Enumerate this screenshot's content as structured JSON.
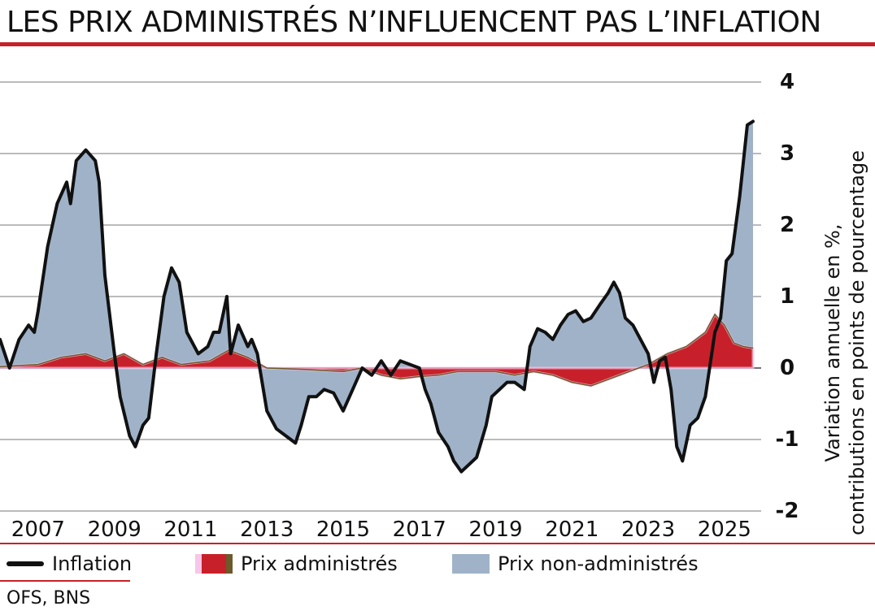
{
  "title": "LES PRIX ADMINISTRÉS N’INFLUENCENT PAS L’INFLATION",
  "source": "OFS, BNS",
  "colors": {
    "accent": "#c8202a",
    "administered": "#c8202a",
    "administered_edge": "#6b5a2a",
    "non_administered": "#9fb2c8",
    "inflation": "#111111",
    "highlight": "#f7c6e8"
  },
  "legend": [
    {
      "key": "inflation",
      "label": "Inflation"
    },
    {
      "key": "administered",
      "label": "Prix administrés"
    },
    {
      "key": "non_administered",
      "label": "Prix non-administrés"
    }
  ],
  "chart_data": {
    "type": "area",
    "title": "LES PRIX ADMINISTRÉS N’INFLUENCENT PAS L’INFLATION",
    "ylabel": "Variation annuelle en %, contributions en points de pourcentage",
    "ylim": [
      -2,
      4
    ],
    "xlim": [
      2006.0,
      2025.75
    ],
    "yticks": [
      "4",
      "3",
      "2",
      "1",
      "0",
      "-1",
      "-2"
    ],
    "ytick_values": [
      4,
      3,
      2,
      1,
      0,
      -1,
      -2
    ],
    "xticks": [
      "2007",
      "2009",
      "2011",
      "2013",
      "2015",
      "2017",
      "2019",
      "2021",
      "2023",
      "2025"
    ],
    "xtick_values": [
      2007,
      2009,
      2011,
      2013,
      2015,
      2017,
      2019,
      2021,
      2023,
      2025
    ],
    "series": [
      {
        "name": "Inflation",
        "kind": "line",
        "points": [
          [
            2006.0,
            0.4
          ],
          [
            2006.25,
            0.0
          ],
          [
            2006.5,
            0.4
          ],
          [
            2006.75,
            0.6
          ],
          [
            2006.9,
            0.5
          ],
          [
            2007.0,
            0.8
          ],
          [
            2007.25,
            1.7
          ],
          [
            2007.5,
            2.3
          ],
          [
            2007.75,
            2.6
          ],
          [
            2007.85,
            2.3
          ],
          [
            2008.0,
            2.9
          ],
          [
            2008.25,
            3.05
          ],
          [
            2008.5,
            2.9
          ],
          [
            2008.6,
            2.6
          ],
          [
            2008.75,
            1.3
          ],
          [
            2009.0,
            0.2
          ],
          [
            2009.15,
            -0.4
          ],
          [
            2009.4,
            -0.95
          ],
          [
            2009.55,
            -1.1
          ],
          [
            2009.75,
            -0.8
          ],
          [
            2009.9,
            -0.7
          ],
          [
            2010.1,
            0.2
          ],
          [
            2010.3,
            1.0
          ],
          [
            2010.5,
            1.4
          ],
          [
            2010.7,
            1.2
          ],
          [
            2010.9,
            0.5
          ],
          [
            2011.2,
            0.2
          ],
          [
            2011.45,
            0.3
          ],
          [
            2011.6,
            0.5
          ],
          [
            2011.75,
            0.5
          ],
          [
            2011.95,
            1.0
          ],
          [
            2012.05,
            0.2
          ],
          [
            2012.25,
            0.6
          ],
          [
            2012.5,
            0.3
          ],
          [
            2012.6,
            0.4
          ],
          [
            2012.75,
            0.2
          ],
          [
            2013.0,
            -0.6
          ],
          [
            2013.25,
            -0.85
          ],
          [
            2013.5,
            -0.95
          ],
          [
            2013.75,
            -1.05
          ],
          [
            2013.9,
            -0.8
          ],
          [
            2014.1,
            -0.4
          ],
          [
            2014.3,
            -0.4
          ],
          [
            2014.5,
            -0.3
          ],
          [
            2014.75,
            -0.35
          ],
          [
            2015.0,
            -0.6
          ],
          [
            2015.25,
            -0.3
          ],
          [
            2015.5,
            0.0
          ],
          [
            2015.75,
            -0.1
          ],
          [
            2016.0,
            0.1
          ],
          [
            2016.25,
            -0.1
          ],
          [
            2016.5,
            0.1
          ],
          [
            2016.75,
            0.05
          ],
          [
            2017.0,
            0.0
          ],
          [
            2017.15,
            -0.3
          ],
          [
            2017.3,
            -0.5
          ],
          [
            2017.5,
            -0.9
          ],
          [
            2017.75,
            -1.1
          ],
          [
            2017.9,
            -1.3
          ],
          [
            2018.1,
            -1.45
          ],
          [
            2018.3,
            -1.35
          ],
          [
            2018.5,
            -1.25
          ],
          [
            2018.75,
            -0.8
          ],
          [
            2018.9,
            -0.4
          ],
          [
            2019.1,
            -0.3
          ],
          [
            2019.3,
            -0.2
          ],
          [
            2019.5,
            -0.2
          ],
          [
            2019.75,
            -0.3
          ],
          [
            2019.9,
            0.3
          ],
          [
            2020.1,
            0.55
          ],
          [
            2020.3,
            0.5
          ],
          [
            2020.5,
            0.4
          ],
          [
            2020.7,
            0.6
          ],
          [
            2020.9,
            0.75
          ],
          [
            2021.1,
            0.8
          ],
          [
            2021.3,
            0.65
          ],
          [
            2021.5,
            0.7
          ],
          [
            2021.75,
            0.9
          ],
          [
            2021.95,
            1.05
          ],
          [
            2022.1,
            1.2
          ],
          [
            2022.25,
            1.05
          ],
          [
            2022.4,
            0.7
          ],
          [
            2022.6,
            0.6
          ],
          [
            2022.8,
            0.4
          ],
          [
            2023.0,
            0.2
          ],
          [
            2023.15,
            -0.2
          ],
          [
            2023.3,
            0.1
          ],
          [
            2023.45,
            0.15
          ],
          [
            2023.6,
            -0.3
          ],
          [
            2023.75,
            -1.1
          ],
          [
            2023.9,
            -1.3
          ],
          [
            2024.1,
            -0.8
          ],
          [
            2024.3,
            -0.7
          ],
          [
            2024.5,
            -0.4
          ],
          [
            2024.75,
            0.5
          ],
          [
            2024.9,
            0.7
          ],
          [
            2025.05,
            1.5
          ],
          [
            2025.2,
            1.6
          ],
          [
            2025.4,
            2.4
          ],
          [
            2025.6,
            3.4
          ],
          [
            2025.75,
            3.45
          ]
        ]
      },
      {
        "name": "Prix administrés",
        "kind": "area",
        "points": [
          [
            2006.0,
            0.02
          ],
          [
            2007.0,
            0.05
          ],
          [
            2007.6,
            0.15
          ],
          [
            2008.25,
            0.2
          ],
          [
            2008.75,
            0.1
          ],
          [
            2009.25,
            0.2
          ],
          [
            2009.75,
            0.05
          ],
          [
            2010.25,
            0.15
          ],
          [
            2010.75,
            0.05
          ],
          [
            2011.5,
            0.1
          ],
          [
            2012.0,
            0.25
          ],
          [
            2012.5,
            0.15
          ],
          [
            2013.0,
            0.0
          ],
          [
            2014.0,
            -0.02
          ],
          [
            2015.0,
            -0.05
          ],
          [
            2015.5,
            0.0
          ],
          [
            2016.0,
            -0.1
          ],
          [
            2016.5,
            -0.15
          ],
          [
            2017.0,
            -0.12
          ],
          [
            2017.5,
            -0.1
          ],
          [
            2018.0,
            -0.05
          ],
          [
            2018.5,
            -0.05
          ],
          [
            2019.0,
            -0.05
          ],
          [
            2019.5,
            -0.1
          ],
          [
            2020.0,
            -0.05
          ],
          [
            2020.5,
            -0.1
          ],
          [
            2021.0,
            -0.2
          ],
          [
            2021.5,
            -0.25
          ],
          [
            2022.0,
            -0.15
          ],
          [
            2022.5,
            -0.05
          ],
          [
            2023.0,
            0.05
          ],
          [
            2023.5,
            0.2
          ],
          [
            2024.0,
            0.3
          ],
          [
            2024.5,
            0.5
          ],
          [
            2024.75,
            0.75
          ],
          [
            2025.0,
            0.6
          ],
          [
            2025.25,
            0.35
          ],
          [
            2025.5,
            0.3
          ],
          [
            2025.75,
            0.28
          ]
        ]
      },
      {
        "name": "Prix non-administrés",
        "kind": "area",
        "stacked_total": true,
        "note": "total = administered + non-administered, closely follows inflation"
      }
    ]
  }
}
